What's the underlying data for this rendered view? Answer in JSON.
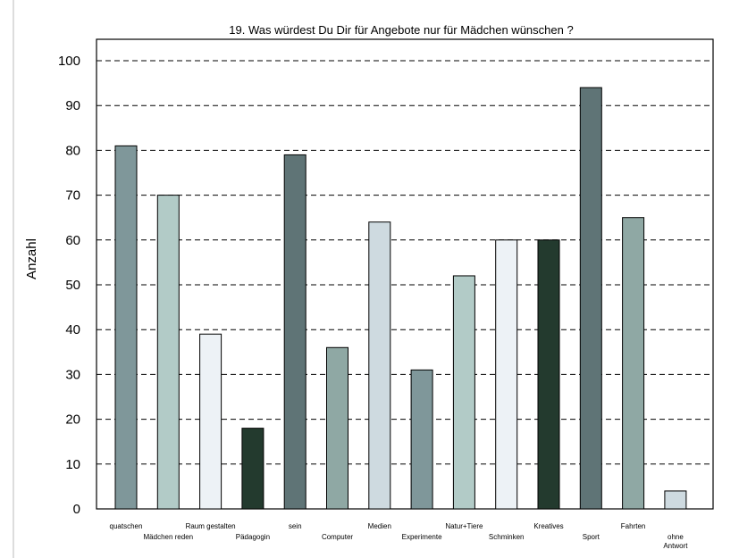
{
  "chart_data": {
    "type": "bar",
    "title": "19. Was würdest Du Dir für Angebote nur für Mädchen wünschen ?",
    "xlabel": "",
    "ylabel": "Anzahl",
    "ylim": [
      0,
      100
    ],
    "yticks": [
      0,
      10,
      20,
      30,
      40,
      50,
      60,
      70,
      80,
      90,
      100
    ],
    "grid": true,
    "legend": "none",
    "categories": [
      [
        "quatschen"
      ],
      [
        "Mädchen reden"
      ],
      [
        "Raum gestalten"
      ],
      [
        "Pädagogin"
      ],
      [
        "sein"
      ],
      [
        "Computer"
      ],
      [
        "Medien"
      ],
      [
        "Experimente"
      ],
      [
        "Natur+Tiere"
      ],
      [
        "Schminken"
      ],
      [
        "Kreatives"
      ],
      [
        "Sport"
      ],
      [
        "Fahrten"
      ],
      [
        "ohne",
        "Antwort"
      ]
    ],
    "values": [
      81,
      70,
      39,
      18,
      79,
      36,
      64,
      31,
      52,
      60,
      60,
      94,
      65,
      4
    ],
    "colors": [
      "#7f979a",
      "#b2cbc7",
      "#edf2f6",
      "#233a2e",
      "#5f7476",
      "#8fa8a4",
      "#cedae0",
      "#7f979a",
      "#b2cbc7",
      "#edf2f6",
      "#233a2e",
      "#5f7476",
      "#8fa8a4",
      "#cedae0"
    ]
  }
}
